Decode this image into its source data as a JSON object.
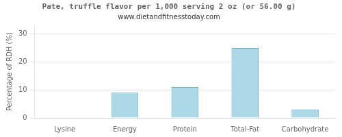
{
  "chart_data": {
    "type": "bar",
    "title": "Pate, truffle flavor per 1,000 serving 2 oz (or 56.00 g)",
    "subtitle": "www.dietandfitnesstoday.com",
    "categories": [
      "Lysine",
      "Energy",
      "Protein",
      "Total-Fat",
      "Carbohydrate"
    ],
    "values": [
      0,
      9,
      11,
      25,
      3
    ],
    "color": "#add8e6",
    "ylabel": "Percentage of RDH (%)",
    "ylim": [
      0,
      33
    ],
    "yticks": [
      0,
      10,
      20,
      30
    ],
    "grid": true
  }
}
